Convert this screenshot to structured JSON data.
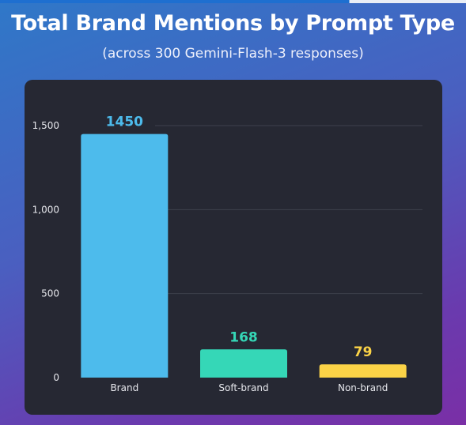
{
  "header": {
    "title": "Total Brand Mentions by Prompt Type",
    "subtitle": "(across 300 Gemini-Flash-3 responses)"
  },
  "chart_data": {
    "type": "bar",
    "title": "Total Brand Mentions by Prompt Type",
    "subtitle": "(across 300 Gemini-Flash-3 responses)",
    "xlabel": "",
    "ylabel": "",
    "categories": [
      "Brand",
      "Soft-brand",
      "Non-brand"
    ],
    "values": [
      1450,
      168,
      79
    ],
    "value_labels": [
      "1450",
      "168",
      "79"
    ],
    "colors": [
      "#4dbbec",
      "#35d7b7",
      "#fbd347"
    ],
    "ylim": [
      0,
      1500
    ],
    "yticks": [
      0,
      500,
      1000,
      1500
    ],
    "ytick_labels": [
      "0",
      "500",
      "1,000",
      "1,500"
    ],
    "grid": true,
    "legend": "none"
  }
}
